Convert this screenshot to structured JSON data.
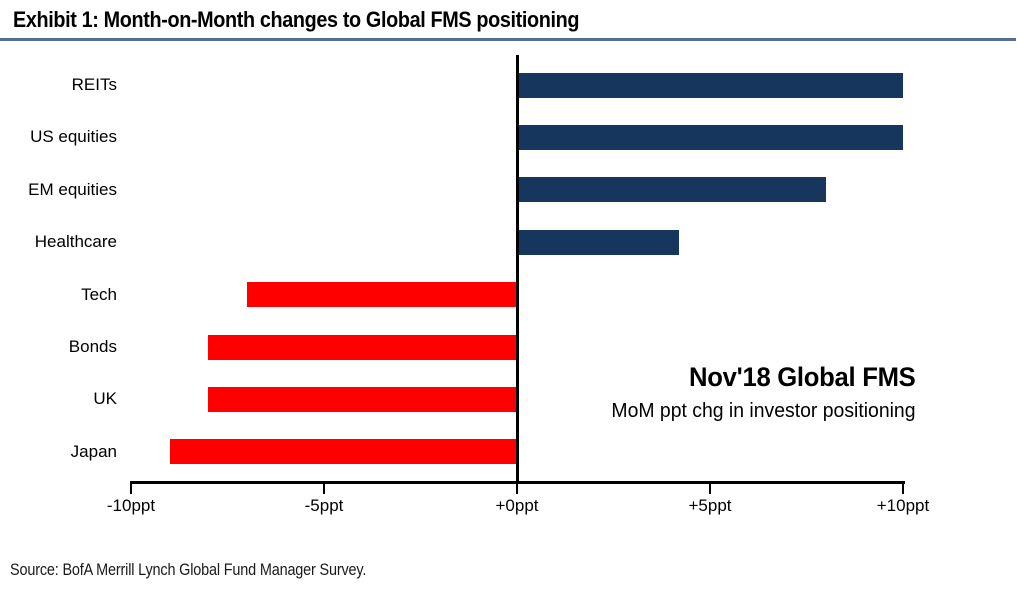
{
  "header": {
    "title": "Exhibit 1: Month-on-Month changes to Global FMS positioning"
  },
  "chart_data": {
    "type": "bar",
    "orientation": "horizontal",
    "title": "Exhibit 1: Month-on-Month changes to Global FMS positioning",
    "categories": [
      "REITs",
      "US equities",
      "EM equities",
      "Healthcare",
      "Tech",
      "Bonds",
      "UK",
      "Japan"
    ],
    "values": [
      10,
      10,
      8,
      4.2,
      -7,
      -8,
      -8,
      -9
    ],
    "unit": "ppt",
    "xlim": [
      -10,
      10
    ],
    "x_tick_values": [
      -10,
      -5,
      0,
      5,
      10
    ],
    "x_tick_labels": [
      "-10ppt",
      "-5ppt",
      "+0ppt",
      "+5ppt",
      "+10ppt"
    ],
    "grid": false,
    "legend_position": "none",
    "positive_color": "#17365D",
    "negative_color": "#FF0000",
    "annotation_title": "Nov'18 Global FMS",
    "annotation_subtitle": "MoM ppt chg in investor positioning"
  },
  "footer": {
    "source": "Source:  BofA Merrill Lynch Global Fund Manager Survey."
  }
}
